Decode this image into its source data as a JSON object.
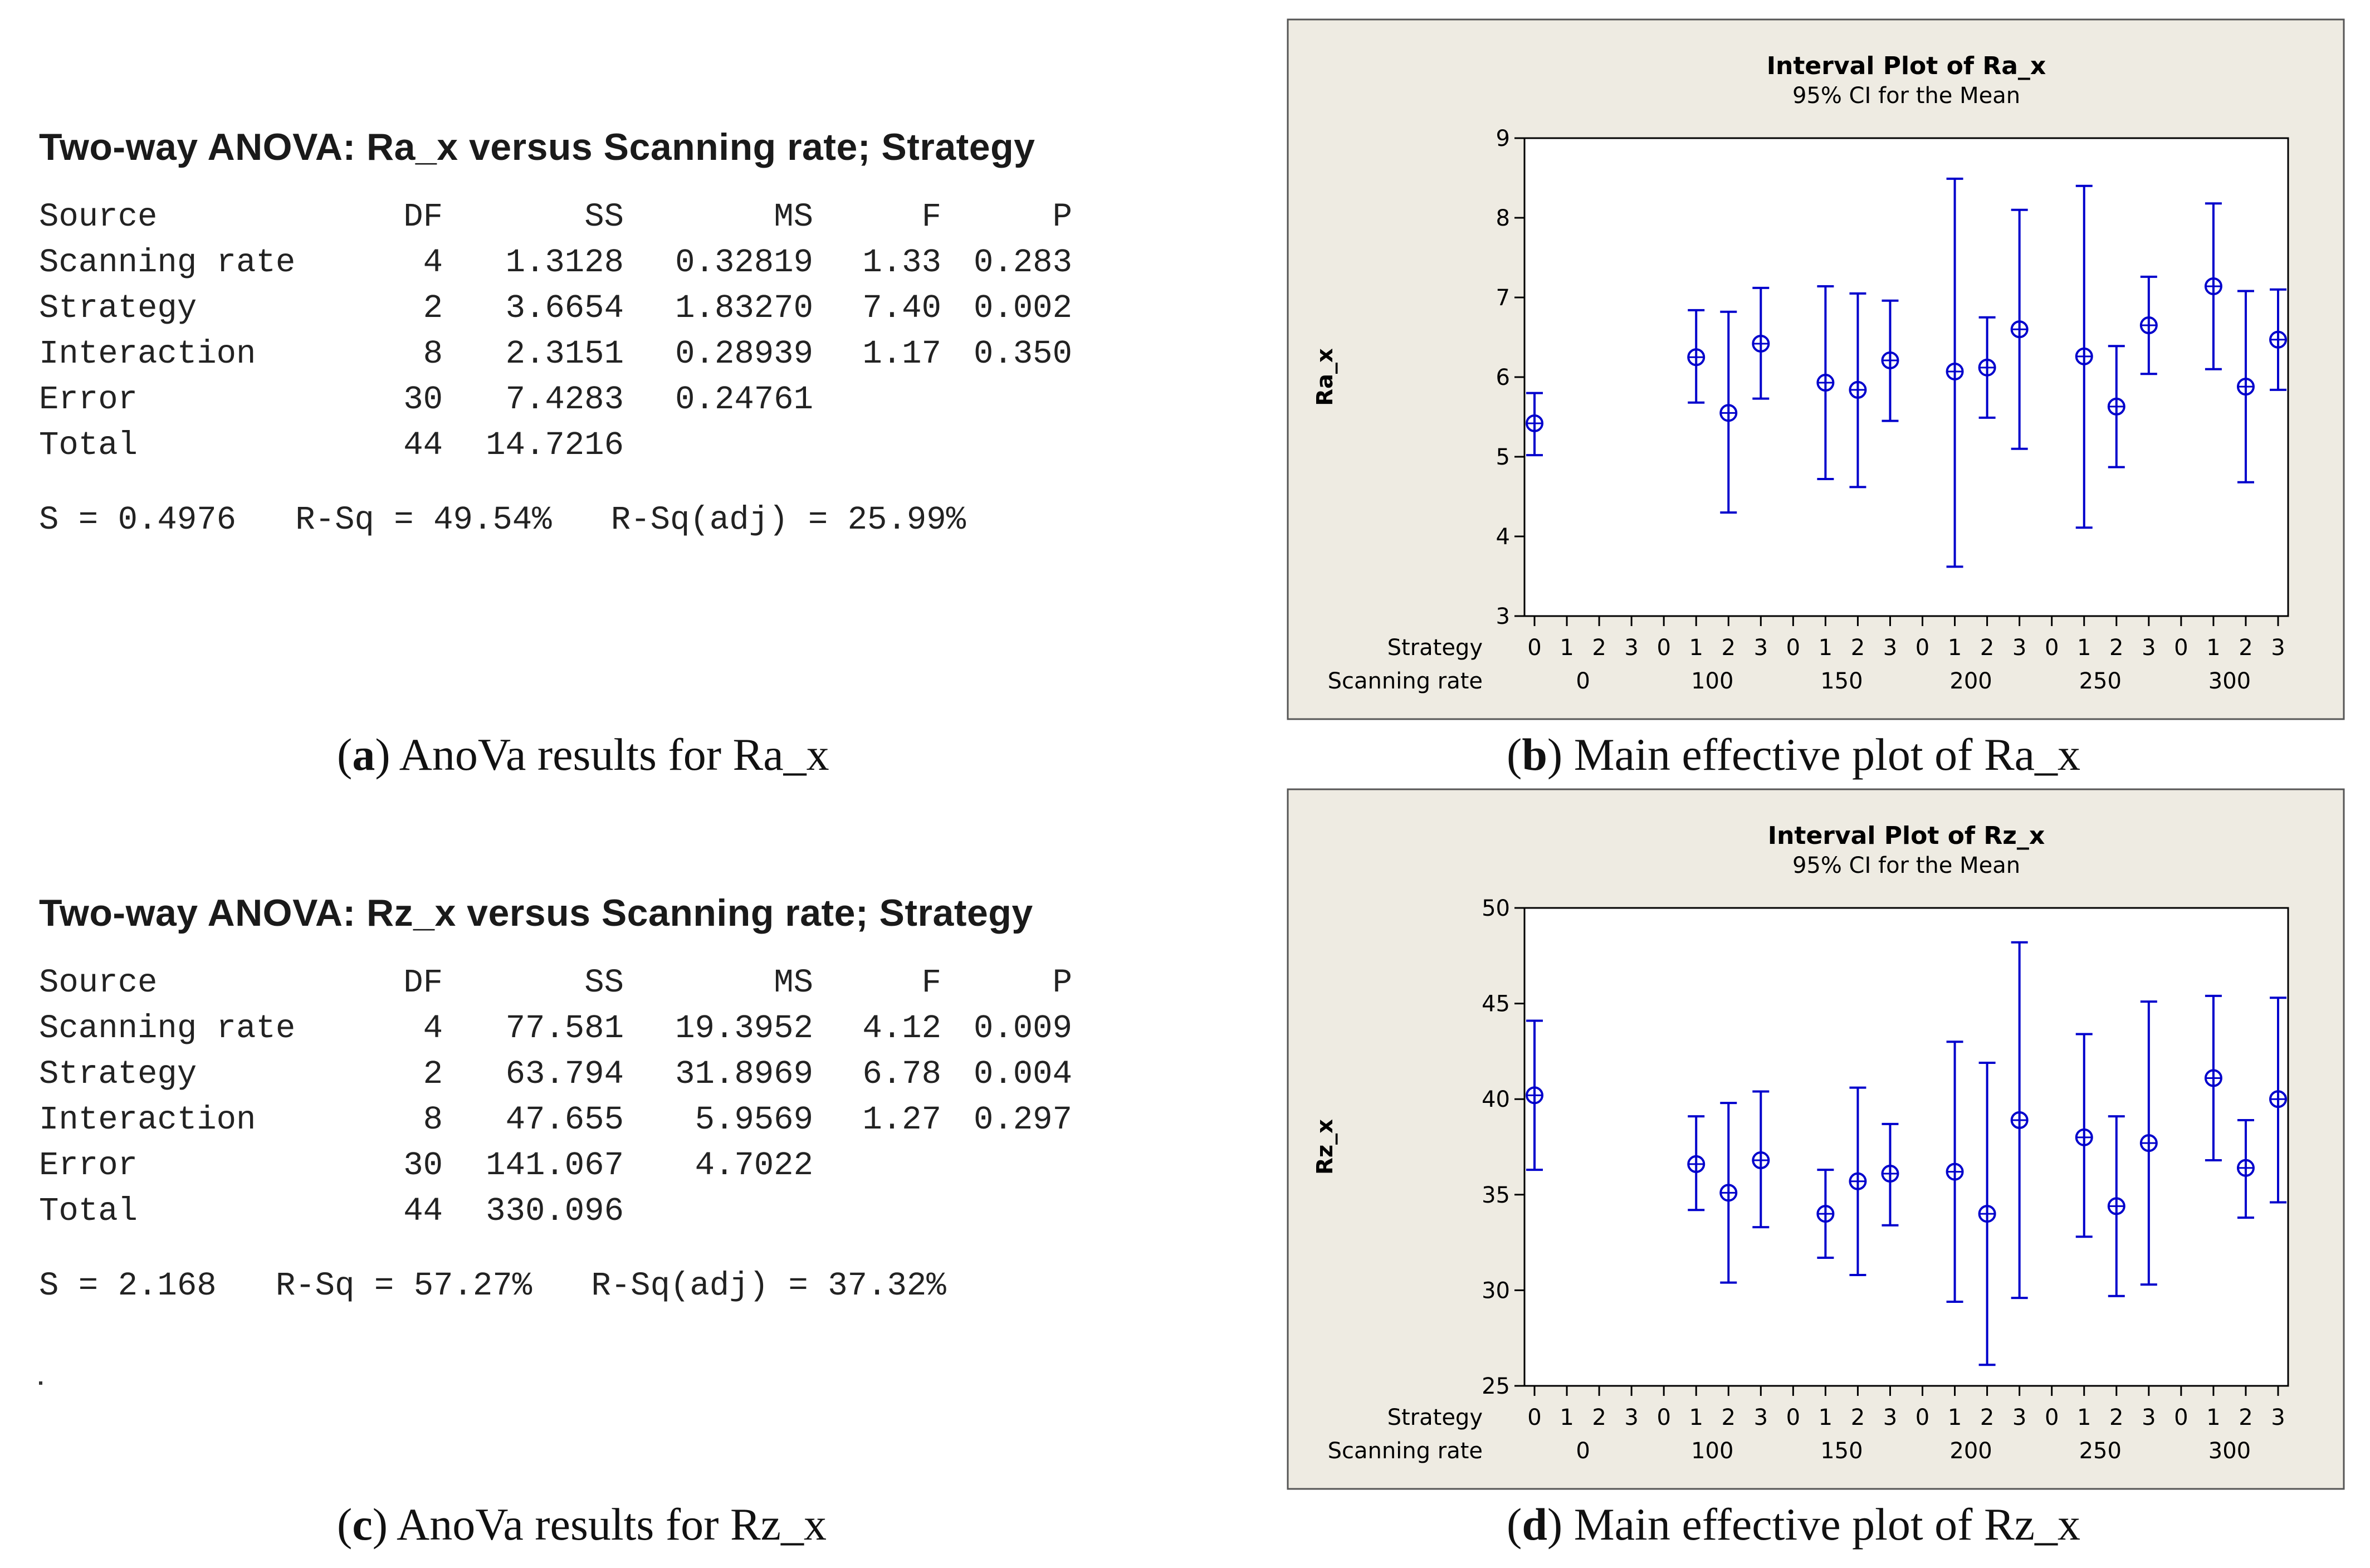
{
  "anova_a": {
    "title": "Two-way ANOVA: Ra_x versus Scanning rate; Strategy",
    "headers": [
      "Source",
      "DF",
      "SS",
      "MS",
      "F",
      "P"
    ],
    "rows": [
      [
        "Scanning rate",
        "4",
        "1.3128",
        "0.32819",
        "1.33",
        "0.283"
      ],
      [
        "Strategy",
        "2",
        "3.6654",
        "1.83270",
        "7.40",
        "0.002"
      ],
      [
        "Interaction",
        "8",
        "2.3151",
        "0.28939",
        "1.17",
        "0.350"
      ],
      [
        "Error",
        "30",
        "7.4283",
        "0.24761",
        "",
        ""
      ],
      [
        "Total",
        "44",
        "14.7216",
        "",
        "",
        ""
      ]
    ],
    "summary": "S = 0.4976   R-Sq = 49.54%   R-Sq(adj) = 25.99%"
  },
  "anova_c": {
    "title": "Two-way ANOVA: Rz_x versus Scanning rate; Strategy",
    "headers": [
      "Source",
      "DF",
      "SS",
      "MS",
      "F",
      "P"
    ],
    "rows": [
      [
        "Scanning rate",
        "4",
        "77.581",
        "19.3952",
        "4.12",
        "0.009"
      ],
      [
        "Strategy",
        "2",
        "63.794",
        "31.8969",
        "6.78",
        "0.004"
      ],
      [
        "Interaction",
        "8",
        "47.655",
        "5.9569",
        "1.27",
        "0.297"
      ],
      [
        "Error",
        "30",
        "141.067",
        "4.7022",
        "",
        ""
      ],
      [
        "Total",
        "44",
        "330.096",
        "",
        "",
        ""
      ]
    ],
    "summary": "S = 2.168   R-Sq = 57.27%   R-Sq(adj) = 37.32%"
  },
  "captions": {
    "a": {
      "letter": "a",
      "text": " AnoVa results for Ra_x"
    },
    "b": {
      "letter": "b",
      "text": " Main effective plot of Ra_x"
    },
    "c": {
      "letter": "c",
      "text": " AnoVa results for Rz_x"
    },
    "d": {
      "letter": "d",
      "text": " Main effective plot of Rz_x"
    }
  },
  "colors": {
    "panel": "#eeebe2",
    "series": "#0000cc",
    "axis": "#000000"
  },
  "chart_data": [
    {
      "type": "interval",
      "title": "Interval Plot of Ra_x",
      "subtitle": "95% CI for the Mean",
      "ylabel": "Ra_x",
      "ylim": [
        3,
        9
      ],
      "yticks": [
        3,
        4,
        5,
        6,
        7,
        8,
        9
      ],
      "row_labels": [
        "Strategy",
        "Scanning rate"
      ],
      "strategy_levels": [
        "0",
        "1",
        "2",
        "3"
      ],
      "scanning_rates": [
        "0",
        "100",
        "150",
        "200",
        "250",
        "300"
      ],
      "points": [
        {
          "rate": "0",
          "strategy": "0",
          "mean": 5.42,
          "lo": 5.02,
          "hi": 5.8
        },
        {
          "rate": "100",
          "strategy": "1",
          "mean": 6.25,
          "lo": 5.68,
          "hi": 6.84
        },
        {
          "rate": "100",
          "strategy": "2",
          "mean": 5.55,
          "lo": 4.3,
          "hi": 6.82
        },
        {
          "rate": "100",
          "strategy": "3",
          "mean": 6.42,
          "lo": 5.73,
          "hi": 7.12
        },
        {
          "rate": "150",
          "strategy": "1",
          "mean": 5.93,
          "lo": 4.72,
          "hi": 7.14
        },
        {
          "rate": "150",
          "strategy": "2",
          "mean": 5.84,
          "lo": 4.62,
          "hi": 7.05
        },
        {
          "rate": "150",
          "strategy": "3",
          "mean": 6.21,
          "lo": 5.45,
          "hi": 6.96
        },
        {
          "rate": "200",
          "strategy": "1",
          "mean": 6.07,
          "lo": 3.62,
          "hi": 8.49
        },
        {
          "rate": "200",
          "strategy": "2",
          "mean": 6.12,
          "lo": 5.49,
          "hi": 6.75
        },
        {
          "rate": "200",
          "strategy": "3",
          "mean": 6.6,
          "lo": 5.1,
          "hi": 8.1
        },
        {
          "rate": "250",
          "strategy": "1",
          "mean": 6.26,
          "lo": 4.11,
          "hi": 8.4
        },
        {
          "rate": "250",
          "strategy": "2",
          "mean": 5.63,
          "lo": 4.87,
          "hi": 6.39
        },
        {
          "rate": "250",
          "strategy": "3",
          "mean": 6.65,
          "lo": 6.04,
          "hi": 7.26
        },
        {
          "rate": "300",
          "strategy": "1",
          "mean": 7.14,
          "lo": 6.1,
          "hi": 8.18
        },
        {
          "rate": "300",
          "strategy": "2",
          "mean": 5.88,
          "lo": 4.68,
          "hi": 7.08
        },
        {
          "rate": "300",
          "strategy": "3",
          "mean": 6.47,
          "lo": 5.84,
          "hi": 7.1
        }
      ]
    },
    {
      "type": "interval",
      "title": "Interval Plot of Rz_x",
      "subtitle": "95% CI for the Mean",
      "ylabel": "Rz_x",
      "ylim": [
        25,
        50
      ],
      "yticks": [
        25,
        30,
        35,
        40,
        45,
        50
      ],
      "row_labels": [
        "Strategy",
        "Scanning rate"
      ],
      "strategy_levels": [
        "0",
        "1",
        "2",
        "3"
      ],
      "scanning_rates": [
        "0",
        "100",
        "150",
        "200",
        "250",
        "300"
      ],
      "points": [
        {
          "rate": "0",
          "strategy": "0",
          "mean": 40.2,
          "lo": 36.3,
          "hi": 44.1
        },
        {
          "rate": "100",
          "strategy": "1",
          "mean": 36.6,
          "lo": 34.2,
          "hi": 39.1
        },
        {
          "rate": "100",
          "strategy": "2",
          "mean": 35.1,
          "lo": 30.4,
          "hi": 39.8
        },
        {
          "rate": "100",
          "strategy": "3",
          "mean": 36.8,
          "lo": 33.3,
          "hi": 40.4
        },
        {
          "rate": "150",
          "strategy": "1",
          "mean": 34.0,
          "lo": 31.7,
          "hi": 36.3
        },
        {
          "rate": "150",
          "strategy": "2",
          "mean": 35.7,
          "lo": 30.8,
          "hi": 40.6
        },
        {
          "rate": "150",
          "strategy": "3",
          "mean": 36.1,
          "lo": 33.4,
          "hi": 38.7
        },
        {
          "rate": "200",
          "strategy": "1",
          "mean": 36.2,
          "lo": 29.4,
          "hi": 43.0
        },
        {
          "rate": "200",
          "strategy": "2",
          "mean": 34.0,
          "lo": 26.1,
          "hi": 41.9
        },
        {
          "rate": "200",
          "strategy": "3",
          "mean": 38.9,
          "lo": 29.6,
          "hi": 48.2
        },
        {
          "rate": "250",
          "strategy": "1",
          "mean": 38.0,
          "lo": 32.8,
          "hi": 43.4
        },
        {
          "rate": "250",
          "strategy": "2",
          "mean": 34.4,
          "lo": 29.7,
          "hi": 39.1
        },
        {
          "rate": "250",
          "strategy": "3",
          "mean": 37.7,
          "lo": 30.3,
          "hi": 45.1
        },
        {
          "rate": "300",
          "strategy": "1",
          "mean": 41.1,
          "lo": 36.8,
          "hi": 45.4
        },
        {
          "rate": "300",
          "strategy": "2",
          "mean": 36.4,
          "lo": 33.8,
          "hi": 38.9
        },
        {
          "rate": "300",
          "strategy": "3",
          "mean": 40.0,
          "lo": 34.6,
          "hi": 45.3
        }
      ]
    }
  ]
}
